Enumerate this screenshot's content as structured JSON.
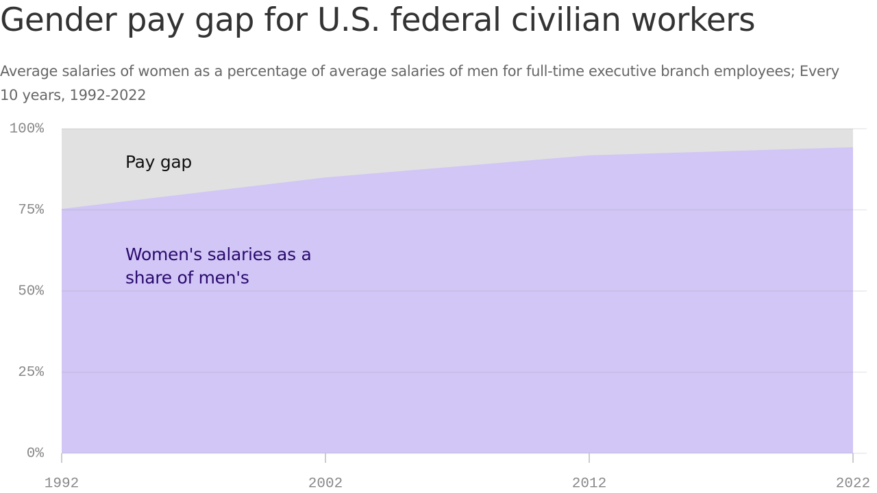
{
  "chart_data": {
    "type": "area",
    "title": "Gender pay gap for U.S. federal civilian workers",
    "subtitle": "Average salaries of women as a percentage of average salaries of men for full-time executive branch employees; Every 10 years, 1992-2022",
    "x": [
      1992,
      2002,
      2012,
      2022
    ],
    "series": [
      {
        "name": "Women's salaries as a share of men's",
        "color": "#d1c6f5",
        "values": [
          75.3,
          85.0,
          91.8,
          94.3
        ]
      }
    ],
    "gap_label": "Pay gap",
    "gap_color": "#e1e1e1",
    "xlim": [
      1992,
      2022
    ],
    "xticks": [
      1992,
      2002,
      2012,
      2022
    ],
    "ylim": [
      0,
      100
    ],
    "yticks": [
      {
        "value": 0,
        "label": "0%"
      },
      {
        "value": 25,
        "label": "25%"
      },
      {
        "value": 50,
        "label": "50%"
      },
      {
        "value": 75,
        "label": "75%"
      },
      {
        "value": 100,
        "label": "100%"
      }
    ],
    "grid": true
  }
}
